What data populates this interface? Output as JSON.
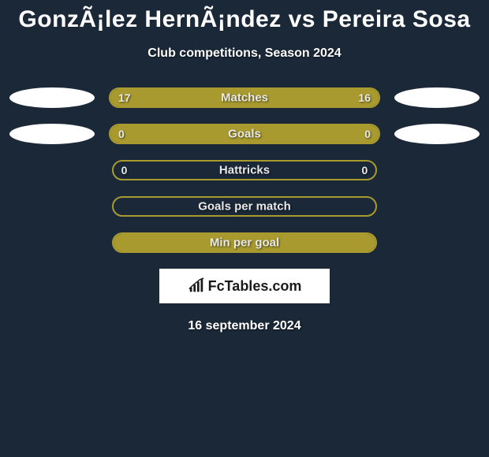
{
  "title": "GonzÃ¡lez HernÃ¡ndez vs Pereira Sosa",
  "subtitle": "Club competitions, Season 2024",
  "colors": {
    "background": "#1a2838",
    "bar_border": "#a89a2e",
    "bar_fill": "#a89a2e",
    "oval": "#ffffff",
    "text": "#e8e8e8",
    "title_text": "#ffffff",
    "brand_bg": "#ffffff",
    "brand_text": "#1a1a1a"
  },
  "stats": [
    {
      "label": "Matches",
      "left_value": "17",
      "right_value": "16",
      "left_fill_pct": 52,
      "right_fill_pct": 48,
      "show_left_oval": true,
      "show_right_oval": true
    },
    {
      "label": "Goals",
      "left_value": "0",
      "right_value": "0",
      "left_fill_pct": 50,
      "right_fill_pct": 50,
      "show_left_oval": true,
      "show_right_oval": true
    },
    {
      "label": "Hattricks",
      "left_value": "0",
      "right_value": "0",
      "left_fill_pct": 0,
      "right_fill_pct": 0,
      "show_left_oval": false,
      "show_right_oval": false
    },
    {
      "label": "Goals per match",
      "left_value": "",
      "right_value": "",
      "left_fill_pct": 0,
      "right_fill_pct": 0,
      "show_left_oval": false,
      "show_right_oval": false
    },
    {
      "label": "Min per goal",
      "left_value": "",
      "right_value": "",
      "left_fill_pct": 100,
      "right_fill_pct": 0,
      "show_left_oval": false,
      "show_right_oval": false
    }
  ],
  "brand": "FcTables.com",
  "date": "16 september 2024"
}
